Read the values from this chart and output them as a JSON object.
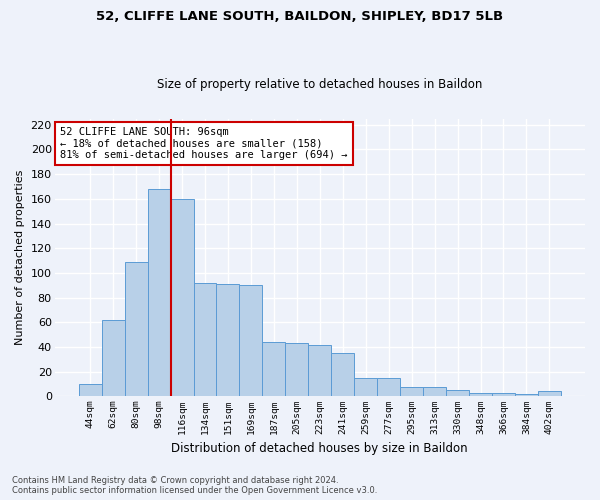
{
  "title1": "52, CLIFFE LANE SOUTH, BAILDON, SHIPLEY, BD17 5LB",
  "title2": "Size of property relative to detached houses in Baildon",
  "xlabel": "Distribution of detached houses by size in Baildon",
  "ylabel": "Number of detached properties",
  "categories": [
    "44sqm",
    "62sqm",
    "80sqm",
    "98sqm",
    "116sqm",
    "134sqm",
    "151sqm",
    "169sqm",
    "187sqm",
    "205sqm",
    "223sqm",
    "241sqm",
    "259sqm",
    "277sqm",
    "295sqm",
    "313sqm",
    "330sqm",
    "348sqm",
    "366sqm",
    "384sqm",
    "402sqm"
  ],
  "values": [
    10,
    62,
    109,
    168,
    160,
    92,
    91,
    90,
    44,
    43,
    42,
    35,
    15,
    15,
    8,
    8,
    5,
    3,
    3,
    2,
    4
  ],
  "bar_color": "#b8d0e8",
  "bar_edge_color": "#5b9bd5",
  "vline_x": 3.5,
  "vline_color": "#cc0000",
  "annotation_text": "52 CLIFFE LANE SOUTH: 96sqm\n← 18% of detached houses are smaller (158)\n81% of semi-detached houses are larger (694) →",
  "annotation_box_color": "#ffffff",
  "annotation_box_edge": "#cc0000",
  "ylim": [
    0,
    225
  ],
  "yticks": [
    0,
    20,
    40,
    60,
    80,
    100,
    120,
    140,
    160,
    180,
    200,
    220
  ],
  "background_color": "#eef2fa",
  "grid_color": "#ffffff",
  "footer": "Contains HM Land Registry data © Crown copyright and database right 2024.\nContains public sector information licensed under the Open Government Licence v3.0."
}
